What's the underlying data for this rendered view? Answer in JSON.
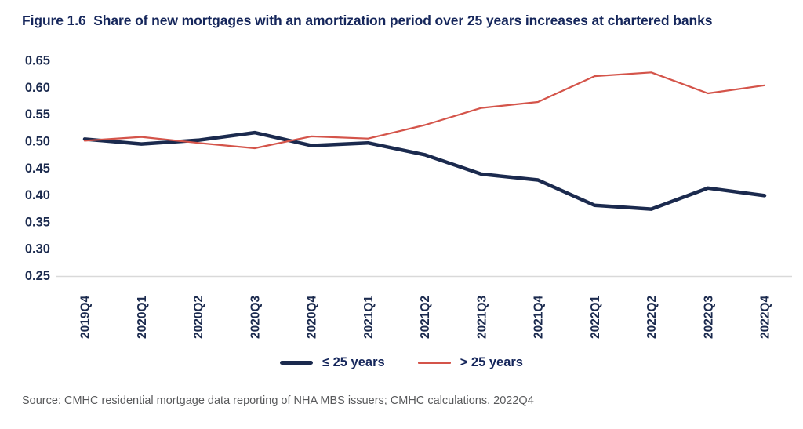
{
  "title": "Figure 1.6  Share of new mortgages with an amortization period over 25 years increases at chartered banks",
  "source": "Source: CMHC residential mortgage data reporting of NHA MBS issuers; CMHC calculations. 2022Q4",
  "colors": {
    "navy": "#1b2a4e",
    "red": "#d4544a",
    "axis_line": "#d9d9d9",
    "title_text": "#15265b",
    "source_text": "#58595b"
  },
  "chart_data": {
    "type": "line",
    "title": "Figure 1.6  Share of new mortgages with an amortization period over 25 years increases at chartered banks",
    "xlabel": "",
    "ylabel": "",
    "categories": [
      "2019Q4",
      "2020Q1",
      "2020Q2",
      "2020Q3",
      "2020Q4",
      "2021Q1",
      "2021Q2",
      "2021Q3",
      "2021Q4",
      "2022Q1",
      "2022Q2",
      "2022Q3",
      "2022Q4"
    ],
    "series": [
      {
        "name": "≤ 25 years",
        "color_key": "navy",
        "stroke_width": 4.5,
        "values": [
          0.503,
          0.494,
          0.501,
          0.515,
          0.491,
          0.496,
          0.474,
          0.438,
          0.427,
          0.38,
          0.373,
          0.412,
          0.398
        ]
      },
      {
        "name": "> 25 years",
        "color_key": "red",
        "stroke_width": 2.2,
        "values": [
          0.5,
          0.507,
          0.496,
          0.486,
          0.508,
          0.504,
          0.529,
          0.561,
          0.572,
          0.62,
          0.627,
          0.588,
          0.603
        ]
      }
    ],
    "ylim": [
      0.25,
      0.65
    ],
    "ytick_step": 0.05,
    "ytick_labels": [
      "0.25",
      "0.30",
      "0.35",
      "0.40",
      "0.45",
      "0.50",
      "0.55",
      "0.60",
      "0.65"
    ],
    "grid": "baseline-only",
    "legend_position": "bottom-center",
    "x_tick_rotation": -90
  }
}
